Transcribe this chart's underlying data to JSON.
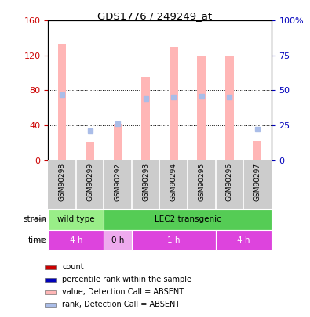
{
  "title": "GDS1776 / 249249_at",
  "samples": [
    "GSM90298",
    "GSM90299",
    "GSM90292",
    "GSM90293",
    "GSM90294",
    "GSM90295",
    "GSM90296",
    "GSM90297"
  ],
  "bar_values": [
    133,
    20,
    42,
    95,
    130,
    120,
    120,
    22
  ],
  "rank_values": [
    47,
    21,
    26,
    44,
    45,
    46,
    45,
    22
  ],
  "ylim_left": [
    0,
    160
  ],
  "ylim_right": [
    0,
    100
  ],
  "yticks_left": [
    0,
    40,
    80,
    120,
    160
  ],
  "yticks_right": [
    0,
    25,
    50,
    75,
    100
  ],
  "yticklabels_left": [
    "0",
    "40",
    "80",
    "120",
    "160"
  ],
  "yticklabels_right": [
    "0",
    "25",
    "50",
    "75",
    "100%"
  ],
  "bar_color_absent": "#FFB6B6",
  "rank_color_absent": "#AABDE8",
  "strain_labels": [
    {
      "label": "wild type",
      "start": 0,
      "end": 2,
      "color": "#99EE88"
    },
    {
      "label": "LEC2 transgenic",
      "start": 2,
      "end": 8,
      "color": "#55CC55"
    }
  ],
  "time_labels": [
    {
      "label": "4 h",
      "start": 0,
      "end": 2,
      "color": "#DD44DD"
    },
    {
      "label": "0 h",
      "start": 2,
      "end": 3,
      "color": "#EEAAEE"
    },
    {
      "label": "1 h",
      "start": 3,
      "end": 6,
      "color": "#DD44DD"
    },
    {
      "label": "4 h",
      "start": 6,
      "end": 8,
      "color": "#DD44DD"
    }
  ],
  "legend_items": [
    {
      "label": "count",
      "color": "#CC0000"
    },
    {
      "label": "percentile rank within the sample",
      "color": "#0000BB"
    },
    {
      "label": "value, Detection Call = ABSENT",
      "color": "#FFB6B6"
    },
    {
      "label": "rank, Detection Call = ABSENT",
      "color": "#AABDE8"
    }
  ],
  "left_axis_color": "#CC0000",
  "right_axis_color": "#0000BB",
  "sample_bg_color": "#CCCCCC",
  "sample_sep_color": "#FFFFFF"
}
